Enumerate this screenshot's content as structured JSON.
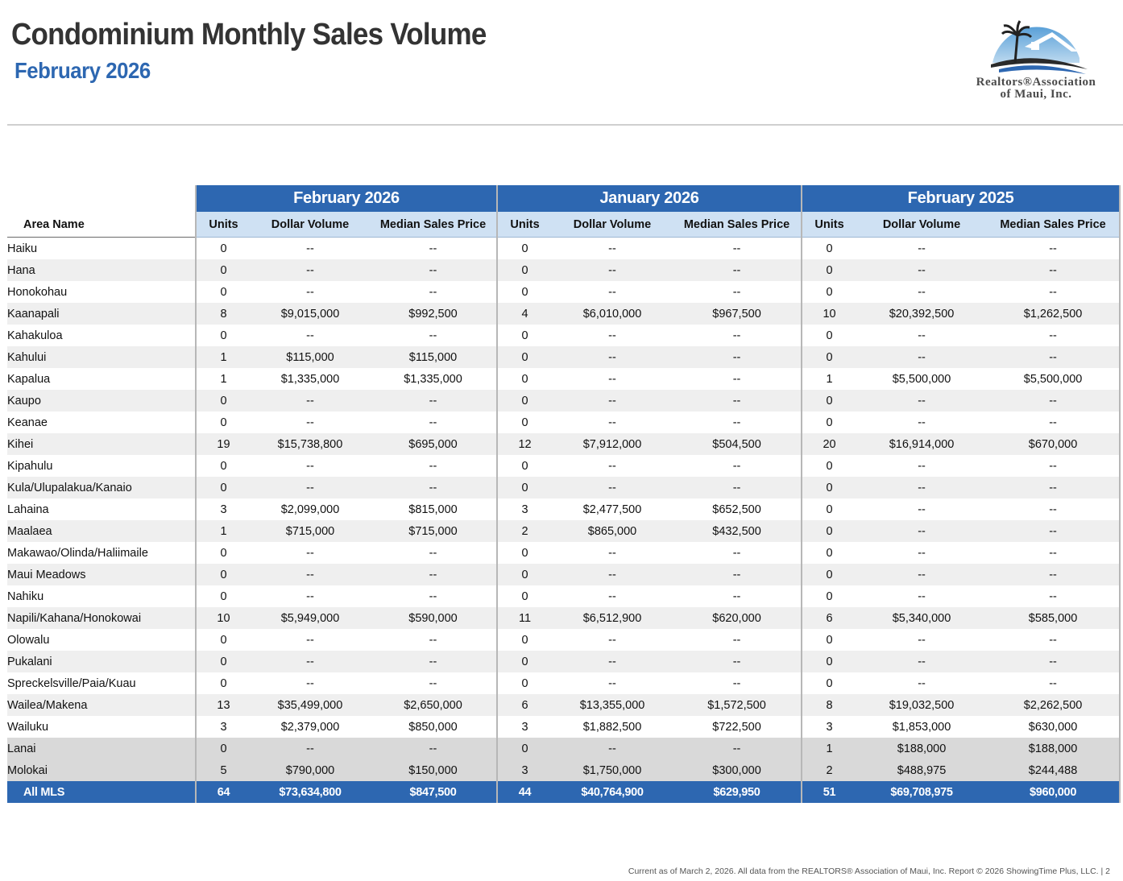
{
  "header": {
    "title": "Condominium Monthly Sales Volume",
    "subtitle": "February 2026"
  },
  "logo": {
    "line1": "Realtors®Association",
    "line2": "of Maui, Inc."
  },
  "table": {
    "groups": [
      "February 2026",
      "January 2026",
      "February 2025"
    ],
    "area_header": "Area Name",
    "col_headers": [
      "Units",
      "Dollar Volume",
      "Median Sales Price"
    ],
    "rows": [
      {
        "area": "Haiku",
        "v": [
          "0",
          "--",
          "--",
          "0",
          "--",
          "--",
          "0",
          "--",
          "--"
        ]
      },
      {
        "area": "Hana",
        "v": [
          "0",
          "--",
          "--",
          "0",
          "--",
          "--",
          "0",
          "--",
          "--"
        ]
      },
      {
        "area": "Honokohau",
        "v": [
          "0",
          "--",
          "--",
          "0",
          "--",
          "--",
          "0",
          "--",
          "--"
        ]
      },
      {
        "area": "Kaanapali",
        "v": [
          "8",
          "$9,015,000",
          "$992,500",
          "4",
          "$6,010,000",
          "$967,500",
          "10",
          "$20,392,500",
          "$1,262,500"
        ]
      },
      {
        "area": "Kahakuloa",
        "v": [
          "0",
          "--",
          "--",
          "0",
          "--",
          "--",
          "0",
          "--",
          "--"
        ]
      },
      {
        "area": "Kahului",
        "v": [
          "1",
          "$115,000",
          "$115,000",
          "0",
          "--",
          "--",
          "0",
          "--",
          "--"
        ]
      },
      {
        "area": "Kapalua",
        "v": [
          "1",
          "$1,335,000",
          "$1,335,000",
          "0",
          "--",
          "--",
          "1",
          "$5,500,000",
          "$5,500,000"
        ]
      },
      {
        "area": "Kaupo",
        "v": [
          "0",
          "--",
          "--",
          "0",
          "--",
          "--",
          "0",
          "--",
          "--"
        ]
      },
      {
        "area": "Keanae",
        "v": [
          "0",
          "--",
          "--",
          "0",
          "--",
          "--",
          "0",
          "--",
          "--"
        ]
      },
      {
        "area": "Kihei",
        "v": [
          "19",
          "$15,738,800",
          "$695,000",
          "12",
          "$7,912,000",
          "$504,500",
          "20",
          "$16,914,000",
          "$670,000"
        ]
      },
      {
        "area": "Kipahulu",
        "v": [
          "0",
          "--",
          "--",
          "0",
          "--",
          "--",
          "0",
          "--",
          "--"
        ]
      },
      {
        "area": "Kula/Ulupalakua/Kanaio",
        "v": [
          "0",
          "--",
          "--",
          "0",
          "--",
          "--",
          "0",
          "--",
          "--"
        ]
      },
      {
        "area": "Lahaina",
        "v": [
          "3",
          "$2,099,000",
          "$815,000",
          "3",
          "$2,477,500",
          "$652,500",
          "0",
          "--",
          "--"
        ]
      },
      {
        "area": "Maalaea",
        "v": [
          "1",
          "$715,000",
          "$715,000",
          "2",
          "$865,000",
          "$432,500",
          "0",
          "--",
          "--"
        ]
      },
      {
        "area": "Makawao/Olinda/Haliimaile",
        "v": [
          "0",
          "--",
          "--",
          "0",
          "--",
          "--",
          "0",
          "--",
          "--"
        ]
      },
      {
        "area": "Maui Meadows",
        "v": [
          "0",
          "--",
          "--",
          "0",
          "--",
          "--",
          "0",
          "--",
          "--"
        ]
      },
      {
        "area": "Nahiku",
        "v": [
          "0",
          "--",
          "--",
          "0",
          "--",
          "--",
          "0",
          "--",
          "--"
        ]
      },
      {
        "area": "Napili/Kahana/Honokowai",
        "v": [
          "10",
          "$5,949,000",
          "$590,000",
          "11",
          "$6,512,900",
          "$620,000",
          "6",
          "$5,340,000",
          "$585,000"
        ]
      },
      {
        "area": "Olowalu",
        "v": [
          "0",
          "--",
          "--",
          "0",
          "--",
          "--",
          "0",
          "--",
          "--"
        ]
      },
      {
        "area": "Pukalani",
        "v": [
          "0",
          "--",
          "--",
          "0",
          "--",
          "--",
          "0",
          "--",
          "--"
        ]
      },
      {
        "area": "Spreckelsville/Paia/Kuau",
        "v": [
          "0",
          "--",
          "--",
          "0",
          "--",
          "--",
          "0",
          "--",
          "--"
        ]
      },
      {
        "area": "Wailea/Makena",
        "v": [
          "13",
          "$35,499,000",
          "$2,650,000",
          "6",
          "$13,355,000",
          "$1,572,500",
          "8",
          "$19,032,500",
          "$2,262,500"
        ]
      },
      {
        "area": "Wailuku",
        "v": [
          "3",
          "$2,379,000",
          "$850,000",
          "3",
          "$1,882,500",
          "$722,500",
          "3",
          "$1,853,000",
          "$630,000"
        ]
      },
      {
        "area": "Lanai",
        "v": [
          "0",
          "--",
          "--",
          "0",
          "--",
          "--",
          "1",
          "$188,000",
          "$188,000"
        ]
      },
      {
        "area": "Molokai",
        "v": [
          "5",
          "$790,000",
          "$150,000",
          "3",
          "$1,750,000",
          "$300,000",
          "2",
          "$488,975",
          "$244,488"
        ]
      }
    ],
    "total": {
      "area": "All MLS",
      "v": [
        "64",
        "$73,634,800",
        "$847,500",
        "44",
        "$40,764,900",
        "$629,950",
        "51",
        "$69,708,975",
        "$960,000"
      ]
    }
  },
  "footer": {
    "text": "Current as of March 2, 2026. All data from the REALTORS® Association of Maui, Inc. Report © 2026 ShowingTime Plus, LLC.  |  2"
  }
}
